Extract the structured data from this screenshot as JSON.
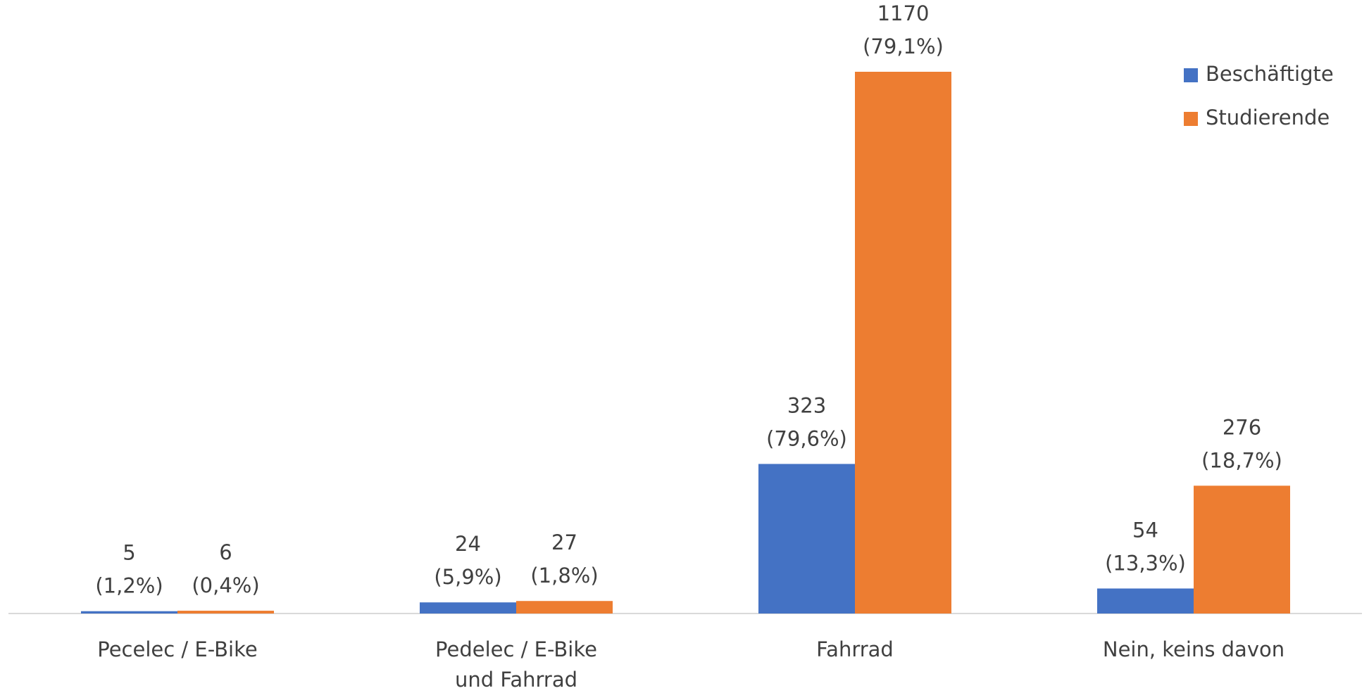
{
  "chart_data": {
    "type": "bar",
    "categories": [
      "Pecelec / E-Bike",
      "Pedelec / E-Bike\nund Fahrrad",
      "Fahrrad",
      "Nein, keins davon"
    ],
    "series": [
      {
        "name": "Beschäftigte",
        "color": "#4472c4",
        "values": [
          5,
          24,
          323,
          54
        ],
        "share_labels": [
          "(1,2%)",
          "(5,9%)",
          "(79,6%)",
          "(13,3%)"
        ]
      },
      {
        "name": "Studierende",
        "color": "#ed7d31",
        "values": [
          6,
          27,
          1170,
          276
        ],
        "share_labels": [
          "(0,4%)",
          "(1,8%)",
          "(79,1%)",
          "(18,7%)"
        ]
      }
    ],
    "ylim": [
      0,
      1170
    ],
    "legend": "top-right"
  }
}
